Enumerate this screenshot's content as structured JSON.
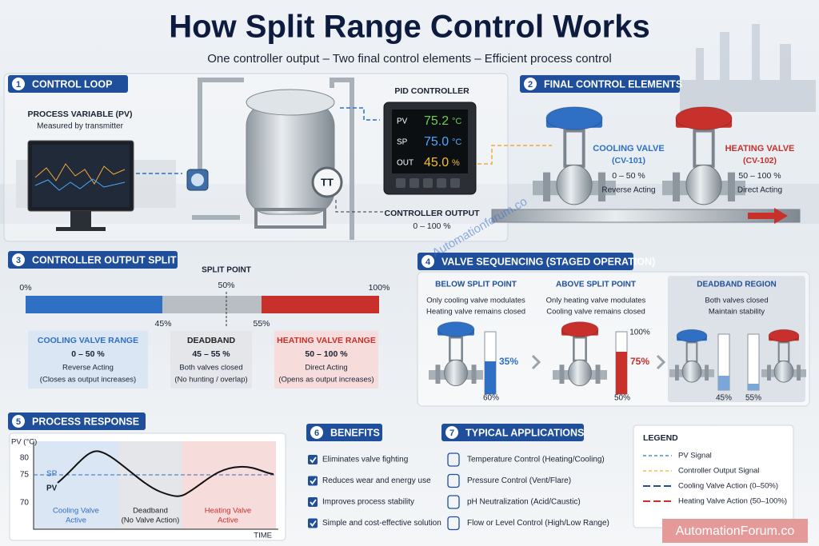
{
  "header": {
    "title": "How Split Range Control Works",
    "subtitle": "One controller output – Two final control elements – Efficient process control"
  },
  "control_loop": {
    "number": "1",
    "title": "CONTROL LOOP",
    "pv_title": "PROCESS VARIABLE (PV)",
    "pv_note": "Measured by transmitter",
    "transmitter_tag": "TT",
    "pid_title": "PID CONTROLLER",
    "pid_display": [
      {
        "label": "PV",
        "value": "75.2",
        "unit": "°C"
      },
      {
        "label": "SP",
        "value": "75.0",
        "unit": "°C"
      },
      {
        "label": "OUT",
        "value": "45.0",
        "unit": "%"
      }
    ],
    "output_title": "CONTROLLER OUTPUT",
    "output_range": "0 – 100 %"
  },
  "final_control_elements": {
    "number": "2",
    "title": "FINAL CONTROL ELEMENTS",
    "valves": [
      {
        "name": "COOLING VALVE",
        "tag": "(CV-101)",
        "range": "0 – 50 %",
        "action": "Reverse Acting"
      },
      {
        "name": "HEATING VALVE",
        "tag": "(CV-102)",
        "range": "50 – 100 %",
        "action": "Direct Acting"
      }
    ]
  },
  "output_split": {
    "number": "3",
    "title": "CONTROLLER OUTPUT SPLIT",
    "split_label": "SPLIT POINT",
    "split_value": "50%",
    "scale_start": "0%",
    "scale_end": "100%",
    "deadband_start": "45%",
    "deadband_end": "55%",
    "ranges": [
      {
        "title": "COOLING VALVE RANGE",
        "range": "0 – 50 %",
        "lines": [
          "Reverse Acting",
          "(Closes as output increases)"
        ]
      },
      {
        "title": "DEADBAND",
        "range": "45 – 55 %",
        "lines": [
          "Both valves closed",
          "(No hunting / overlap)"
        ]
      },
      {
        "title": "HEATING VALVE RANGE",
        "range": "50 – 100 %",
        "lines": [
          "Direct Acting",
          "(Opens as output increases)"
        ]
      }
    ]
  },
  "valve_sequencing": {
    "number": "4",
    "title": "VALVE SEQUENCING (STAGED OPERATION)",
    "panels": [
      {
        "title": "BELOW SPLIT POINT",
        "lines": [
          "Only cooling valve modulates",
          "Heating valve remains closed"
        ],
        "level_label": "35%",
        "scale_label": "60%"
      },
      {
        "title": "ABOVE SPLIT POINT",
        "lines": [
          "Only heating valve modulates",
          "Cooling valve remains closed"
        ],
        "scale_top": "100%",
        "level_label": "75%",
        "scale_label": "50%"
      },
      {
        "title": "DEADBAND REGION",
        "lines": [
          "Both valves closed",
          "Maintain stability"
        ],
        "gauge_labels": [
          "45%",
          "55%"
        ]
      }
    ]
  },
  "process_response": {
    "number": "5",
    "title": "PROCESS RESPONSE",
    "y_label": "PV (°C)",
    "y_ticks": [
      "80",
      "75",
      "70"
    ],
    "setpoint_label": "SP",
    "pv_label": "PV",
    "x_label": "TIME",
    "zones": [
      [
        "Cooling Valve",
        "Active"
      ],
      [
        "Deadband",
        "(No Valve Action)"
      ],
      [
        "Heating Valve",
        "Active"
      ]
    ]
  },
  "benefits": {
    "number": "6",
    "title": "BENEFITS",
    "items": [
      "Eliminates valve fighting",
      "Reduces wear and energy use",
      "Improves process stability",
      "Simple and cost-effective solution"
    ]
  },
  "applications": {
    "number": "7",
    "title": "TYPICAL APPLICATIONS",
    "items": [
      "Temperature Control (Heating/Cooling)",
      "Pressure Control (Vent/Flare)",
      "pH Neutralization (Acid/Caustic)",
      "Flow or Level Control (High/Low Range)"
    ]
  },
  "legend": {
    "title": "LEGEND",
    "items": [
      "PV Signal",
      "Controller Output Signal",
      "Cooling Valve Action (0–50%)",
      "Heating Valve Action (50–100%)"
    ]
  },
  "watermarks": [
    "Automationforum.co",
    "AutomationForum.co"
  ]
}
